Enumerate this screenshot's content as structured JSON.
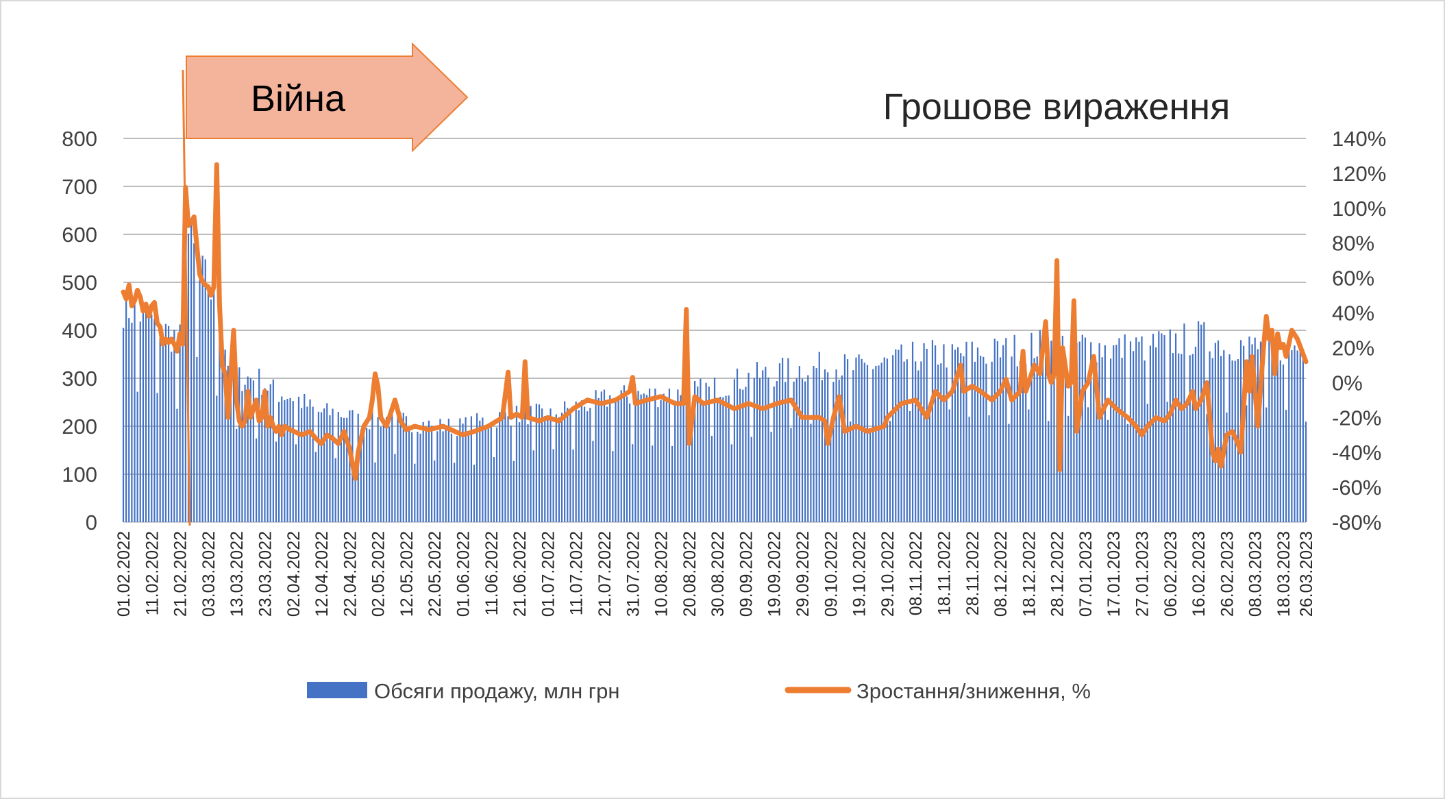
{
  "chart_data": {
    "type": "bar",
    "title": "Грошове вираження",
    "annotation": {
      "label": "Війна",
      "date": "24.02.2022"
    },
    "x_ticks": [
      "01.02.2022",
      "11.02.2022",
      "21.02.2022",
      "03.03.2022",
      "13.03.2022",
      "23.03.2022",
      "02.04.2022",
      "12.04.2022",
      "22.04.2022",
      "02.05.2022",
      "12.05.2022",
      "22.05.2022",
      "01.06.2022",
      "11.06.2022",
      "21.06.2022",
      "01.07.2022",
      "11.07.2022",
      "21.07.2022",
      "31.07.2022",
      "10.08.2022",
      "20.08.2022",
      "30.08.2022",
      "09.09.2022",
      "19.09.2022",
      "29.09.2022",
      "09.10.2022",
      "19.10.2022",
      "29.10.2022",
      "08.11.2022",
      "18.11.2022",
      "28.11.2022",
      "08.12.2022",
      "18.12.2022",
      "28.12.2022",
      "07.01.2023",
      "17.01.2023",
      "27.01.2023",
      "06.02.2023",
      "16.02.2023",
      "26.02.2023",
      "08.03.2023",
      "18.03.2023",
      "26.03.2023"
    ],
    "y_left": {
      "min": 0,
      "max": 800,
      "step": 100,
      "ticks": [
        "0",
        "100",
        "200",
        "300",
        "400",
        "500",
        "600",
        "700",
        "800"
      ]
    },
    "y_right": {
      "min": -80,
      "max": 140,
      "step": 20,
      "ticks": [
        "-80%",
        "-60%",
        "-40%",
        "-20%",
        "0%",
        "20%",
        "40%",
        "60%",
        "80%",
        "100%",
        "120%",
        "140%"
      ]
    },
    "grid": true,
    "legend_position": "bottom",
    "series": [
      {
        "name": "Обсяги продажу, млн грн",
        "type": "bar",
        "axis": "left",
        "color": "#4472c4",
        "anchors": [
          [
            "01.02.2022",
            450
          ],
          [
            "08.02.2022",
            430
          ],
          [
            "15.02.2022",
            400
          ],
          [
            "21.02.2022",
            380
          ],
          [
            "24.02.2022",
            600
          ],
          [
            "28.02.2022",
            520
          ],
          [
            "03.03.2022",
            500
          ],
          [
            "06.03.2022",
            440
          ],
          [
            "10.03.2022",
            340
          ],
          [
            "13.03.2022",
            300
          ],
          [
            "20.03.2022",
            300
          ],
          [
            "27.03.2022",
            270
          ],
          [
            "03.04.2022",
            260
          ],
          [
            "10.04.2022",
            230
          ],
          [
            "20.04.2022",
            225
          ],
          [
            "26.04.2022",
            210
          ],
          [
            "05.05.2022",
            215
          ],
          [
            "12.05.2022",
            210
          ],
          [
            "22.05.2022",
            200
          ],
          [
            "01.06.2022",
            200
          ],
          [
            "11.06.2022",
            215
          ],
          [
            "21.06.2022",
            225
          ],
          [
            "01.07.2022",
            225
          ],
          [
            "11.07.2022",
            240
          ],
          [
            "21.07.2022",
            255
          ],
          [
            "31.07.2022",
            265
          ],
          [
            "10.08.2022",
            265
          ],
          [
            "20.08.2022",
            270
          ],
          [
            "30.08.2022",
            280
          ],
          [
            "09.09.2022",
            300
          ],
          [
            "19.09.2022",
            310
          ],
          [
            "29.09.2022",
            320
          ],
          [
            "09.10.2022",
            325
          ],
          [
            "19.10.2022",
            320
          ],
          [
            "29.10.2022",
            330
          ],
          [
            "08.11.2022",
            345
          ],
          [
            "18.11.2022",
            350
          ],
          [
            "28.11.2022",
            350
          ],
          [
            "08.12.2022",
            355
          ],
          [
            "18.12.2022",
            365
          ],
          [
            "28.12.2022",
            370
          ],
          [
            "07.01.2023",
            370
          ],
          [
            "17.01.2023",
            360
          ],
          [
            "27.01.2023",
            365
          ],
          [
            "06.02.2023",
            375
          ],
          [
            "16.02.2023",
            385
          ],
          [
            "26.02.2023",
            370
          ],
          [
            "08.03.2023",
            370
          ],
          [
            "18.03.2023",
            360
          ],
          [
            "26.03.2023",
            370
          ]
        ]
      },
      {
        "name": "Зростання/зниження, %",
        "type": "line",
        "axis": "right",
        "color": "#ed7d31",
        "anchors": [
          [
            "01.02.2022",
            52
          ],
          [
            "02.02.2022",
            48
          ],
          [
            "03.02.2022",
            56
          ],
          [
            "04.02.2022",
            44
          ],
          [
            "05.02.2022",
            47
          ],
          [
            "06.02.2022",
            53
          ],
          [
            "07.02.2022",
            49
          ],
          [
            "08.02.2022",
            41
          ],
          [
            "09.02.2022",
            45
          ],
          [
            "10.02.2022",
            38
          ],
          [
            "11.02.2022",
            44
          ],
          [
            "12.02.2022",
            46
          ],
          [
            "13.02.2022",
            34
          ],
          [
            "14.02.2022",
            32
          ],
          [
            "15.02.2022",
            22
          ],
          [
            "16.02.2022",
            25
          ],
          [
            "17.02.2022",
            23
          ],
          [
            "18.02.2022",
            25
          ],
          [
            "19.02.2022",
            22
          ],
          [
            "20.02.2022",
            18
          ],
          [
            "21.02.2022",
            28
          ],
          [
            "22.02.2022",
            22
          ],
          [
            "23.02.2022",
            112
          ],
          [
            "24.02.2022",
            90
          ],
          [
            "25.02.2022",
            92
          ],
          [
            "26.02.2022",
            95
          ],
          [
            "27.02.2022",
            78
          ],
          [
            "28.02.2022",
            62
          ],
          [
            "01.03.2022",
            58
          ],
          [
            "02.03.2022",
            56
          ],
          [
            "03.03.2022",
            55
          ],
          [
            "04.03.2022",
            50
          ],
          [
            "05.03.2022",
            55
          ],
          [
            "06.03.2022",
            125
          ],
          [
            "07.03.2022",
            45
          ],
          [
            "08.03.2022",
            10
          ],
          [
            "09.03.2022",
            5
          ],
          [
            "10.03.2022",
            -20
          ],
          [
            "11.03.2022",
            5
          ],
          [
            "12.03.2022",
            30
          ],
          [
            "13.03.2022",
            -10
          ],
          [
            "14.03.2022",
            -22
          ],
          [
            "15.03.2022",
            -25
          ],
          [
            "16.03.2022",
            -22
          ],
          [
            "17.03.2022",
            -5
          ],
          [
            "18.03.2022",
            -20
          ],
          [
            "19.03.2022",
            -15
          ],
          [
            "20.03.2022",
            -10
          ],
          [
            "21.03.2022",
            -22
          ],
          [
            "22.03.2022",
            -20
          ],
          [
            "23.03.2022",
            -5
          ],
          [
            "24.03.2022",
            -25
          ],
          [
            "25.03.2022",
            -20
          ],
          [
            "26.03.2022",
            -25
          ],
          [
            "27.03.2022",
            -28
          ],
          [
            "28.03.2022",
            -25
          ],
          [
            "29.03.2022",
            -30
          ],
          [
            "30.03.2022",
            -25
          ],
          [
            "01.04.2022",
            -27
          ],
          [
            "05.04.2022",
            -30
          ],
          [
            "08.04.2022",
            -28
          ],
          [
            "10.04.2022",
            -32
          ],
          [
            "12.04.2022",
            -35
          ],
          [
            "14.04.2022",
            -30
          ],
          [
            "16.04.2022",
            -32
          ],
          [
            "18.04.2022",
            -35
          ],
          [
            "20.04.2022",
            -28
          ],
          [
            "22.04.2022",
            -38
          ],
          [
            "24.04.2022",
            -55
          ],
          [
            "25.04.2022",
            -40
          ],
          [
            "27.04.2022",
            -25
          ],
          [
            "29.04.2022",
            -20
          ],
          [
            "30.04.2022",
            -10
          ],
          [
            "01.05.2022",
            5
          ],
          [
            "02.05.2022",
            -2
          ],
          [
            "03.05.2022",
            -20
          ],
          [
            "05.05.2022",
            -25
          ],
          [
            "08.05.2022",
            -10
          ],
          [
            "10.05.2022",
            -22
          ],
          [
            "12.05.2022",
            -27
          ],
          [
            "15.05.2022",
            -25
          ],
          [
            "20.05.2022",
            -27
          ],
          [
            "25.05.2022",
            -25
          ],
          [
            "01.06.2022",
            -30
          ],
          [
            "05.06.2022",
            -28
          ],
          [
            "10.06.2022",
            -25
          ],
          [
            "15.06.2022",
            -20
          ],
          [
            "17.06.2022",
            6
          ],
          [
            "18.06.2022",
            -20
          ],
          [
            "20.06.2022",
            -18
          ],
          [
            "22.06.2022",
            -20
          ],
          [
            "23.06.2022",
            12
          ],
          [
            "24.06.2022",
            -20
          ],
          [
            "28.06.2022",
            -22
          ],
          [
            "01.07.2022",
            -20
          ],
          [
            "05.07.2022",
            -22
          ],
          [
            "10.07.2022",
            -15
          ],
          [
            "15.07.2022",
            -10
          ],
          [
            "20.07.2022",
            -12
          ],
          [
            "25.07.2022",
            -10
          ],
          [
            "30.07.2022",
            -5
          ],
          [
            "31.07.2022",
            3
          ],
          [
            "01.08.2022",
            -12
          ],
          [
            "05.08.2022",
            -10
          ],
          [
            "10.08.2022",
            -8
          ],
          [
            "15.08.2022",
            -12
          ],
          [
            "18.08.2022",
            -12
          ],
          [
            "19.08.2022",
            42
          ],
          [
            "20.08.2022",
            -35
          ],
          [
            "22.08.2022",
            -8
          ],
          [
            "25.08.2022",
            -12
          ],
          [
            "30.08.2022",
            -10
          ],
          [
            "05.09.2022",
            -15
          ],
          [
            "10.09.2022",
            -12
          ],
          [
            "15.09.2022",
            -15
          ],
          [
            "20.09.2022",
            -12
          ],
          [
            "25.09.2022",
            -10
          ],
          [
            "29.09.2022",
            -20
          ],
          [
            "05.10.2022",
            -20
          ],
          [
            "07.10.2022",
            -22
          ],
          [
            "08.10.2022",
            -35
          ],
          [
            "10.10.2022",
            -20
          ],
          [
            "12.10.2022",
            -8
          ],
          [
            "14.10.2022",
            -28
          ],
          [
            "18.10.2022",
            -25
          ],
          [
            "22.10.2022",
            -28
          ],
          [
            "28.10.2022",
            -25
          ],
          [
            "29.10.2022",
            -20
          ],
          [
            "03.11.2022",
            -12
          ],
          [
            "08.11.2022",
            -10
          ],
          [
            "12.11.2022",
            -20
          ],
          [
            "15.11.2022",
            -5
          ],
          [
            "18.11.2022",
            -10
          ],
          [
            "21.11.2022",
            -5
          ],
          [
            "24.11.2022",
            10
          ],
          [
            "25.11.2022",
            -5
          ],
          [
            "28.11.2022",
            -2
          ],
          [
            "01.12.2022",
            -5
          ],
          [
            "05.12.2022",
            -10
          ],
          [
            "08.12.2022",
            -5
          ],
          [
            "10.12.2022",
            2
          ],
          [
            "12.12.2022",
            -10
          ],
          [
            "15.12.2022",
            -5
          ],
          [
            "16.12.2022",
            18
          ],
          [
            "17.12.2022",
            -5
          ],
          [
            "19.12.2022",
            5
          ],
          [
            "20.12.2022",
            10
          ],
          [
            "22.12.2022",
            5
          ],
          [
            "24.12.2022",
            35
          ],
          [
            "25.12.2022",
            5
          ],
          [
            "26.12.2022",
            0
          ],
          [
            "27.12.2022",
            5
          ],
          [
            "28.12.2022",
            70
          ],
          [
            "29.12.2022",
            -50
          ],
          [
            "30.12.2022",
            20
          ],
          [
            "01.01.2023",
            -2
          ],
          [
            "02.01.2023",
            0
          ],
          [
            "03.01.2023",
            47
          ],
          [
            "04.01.2023",
            -28
          ],
          [
            "06.01.2023",
            -5
          ],
          [
            "08.01.2023",
            0
          ],
          [
            "10.01.2023",
            15
          ],
          [
            "12.01.2023",
            -20
          ],
          [
            "15.01.2023",
            -10
          ],
          [
            "18.01.2023",
            -15
          ],
          [
            "22.01.2023",
            -20
          ],
          [
            "25.01.2023",
            -25
          ],
          [
            "27.01.2023",
            -30
          ],
          [
            "29.01.2023",
            -25
          ],
          [
            "01.02.2023",
            -20
          ],
          [
            "04.02.2023",
            -22
          ],
          [
            "06.02.2023",
            -18
          ],
          [
            "08.02.2023",
            -10
          ],
          [
            "10.02.2023",
            -15
          ],
          [
            "12.02.2023",
            -12
          ],
          [
            "14.02.2023",
            -5
          ],
          [
            "15.02.2023",
            -15
          ],
          [
            "17.02.2023",
            -10
          ],
          [
            "19.02.2023",
            0
          ],
          [
            "21.02.2023",
            -40
          ],
          [
            "22.02.2023",
            -45
          ],
          [
            "23.02.2023",
            -38
          ],
          [
            "24.02.2023",
            -48
          ],
          [
            "26.02.2023",
            -30
          ],
          [
            "28.02.2023",
            -28
          ],
          [
            "02.03.2023",
            -35
          ],
          [
            "03.03.2023",
            -40
          ],
          [
            "05.03.2023",
            12
          ],
          [
            "06.03.2023",
            -5
          ],
          [
            "07.03.2023",
            15
          ],
          [
            "08.03.2023",
            -5
          ],
          [
            "09.03.2023",
            -25
          ],
          [
            "11.03.2023",
            20
          ],
          [
            "12.03.2023",
            38
          ],
          [
            "13.03.2023",
            25
          ],
          [
            "14.03.2023",
            30
          ],
          [
            "15.03.2023",
            5
          ],
          [
            "16.03.2023",
            28
          ],
          [
            "17.03.2023",
            20
          ],
          [
            "18.03.2023",
            22
          ],
          [
            "19.03.2023",
            15
          ],
          [
            "21.03.2023",
            30
          ],
          [
            "23.03.2023",
            25
          ],
          [
            "26.03.2023",
            12
          ]
        ]
      }
    ]
  }
}
